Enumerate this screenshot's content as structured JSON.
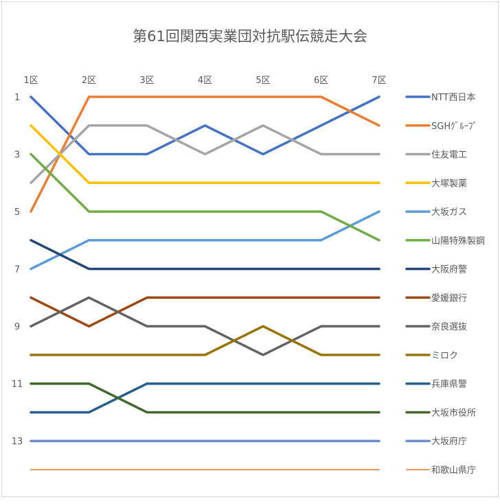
{
  "chart_data": {
    "type": "line",
    "title": "第61回関西実業団対抗駅伝競走大会",
    "categories": [
      "1区",
      "2区",
      "3区",
      "4区",
      "5区",
      "6区",
      "7区"
    ],
    "y_ticks": [
      1,
      3,
      5,
      7,
      9,
      11,
      13
    ],
    "ylim": [
      1,
      14
    ],
    "y_reversed": true,
    "legend_position": "right",
    "series": [
      {
        "name": "NTT西日本",
        "color": "#4472C4",
        "values": [
          1,
          3,
          3,
          2,
          3,
          2,
          1
        ]
      },
      {
        "name": "SGHｸﾞﾙｰﾌﾟ",
        "color": "#ED7D31",
        "values": [
          5,
          1,
          1,
          1,
          1,
          1,
          2
        ]
      },
      {
        "name": "住友電工",
        "color": "#A5A5A5",
        "values": [
          4,
          2,
          2,
          3,
          2,
          3,
          3
        ]
      },
      {
        "name": "大塚製薬",
        "color": "#FFC000",
        "values": [
          2,
          4,
          4,
          4,
          4,
          4,
          4
        ]
      },
      {
        "name": "大坂ガス",
        "color": "#5B9BD5",
        "values": [
          7,
          6,
          6,
          6,
          6,
          6,
          5
        ]
      },
      {
        "name": "山陽特殊製鋼",
        "color": "#70AD47",
        "values": [
          3,
          5,
          5,
          5,
          5,
          5,
          6
        ]
      },
      {
        "name": "大阪府警",
        "color": "#264478",
        "values": [
          6,
          7,
          7,
          7,
          7,
          7,
          7
        ]
      },
      {
        "name": "愛媛銀行",
        "color": "#9E480E",
        "values": [
          8,
          9,
          8,
          8,
          8,
          8,
          8
        ]
      },
      {
        "name": "奈良選抜",
        "color": "#636363",
        "values": [
          9,
          8,
          9,
          9,
          10,
          9,
          9
        ]
      },
      {
        "name": "ミロク",
        "color": "#997300",
        "values": [
          10,
          10,
          10,
          10,
          9,
          10,
          10
        ]
      },
      {
        "name": "兵庫県警",
        "color": "#255E91",
        "values": [
          12,
          12,
          11,
          11,
          11,
          11,
          11
        ]
      },
      {
        "name": "大坂市役所",
        "color": "#43682B",
        "values": [
          11,
          11,
          12,
          12,
          12,
          12,
          12
        ]
      },
      {
        "name": "大坂府庁",
        "color": "#698ED0",
        "values": [
          13,
          13,
          13,
          13,
          13,
          13,
          13
        ]
      },
      {
        "name": "和歌山県庁",
        "color": "#F1975A",
        "values": [
          14,
          14,
          14,
          14,
          14,
          14,
          14
        ]
      }
    ]
  }
}
